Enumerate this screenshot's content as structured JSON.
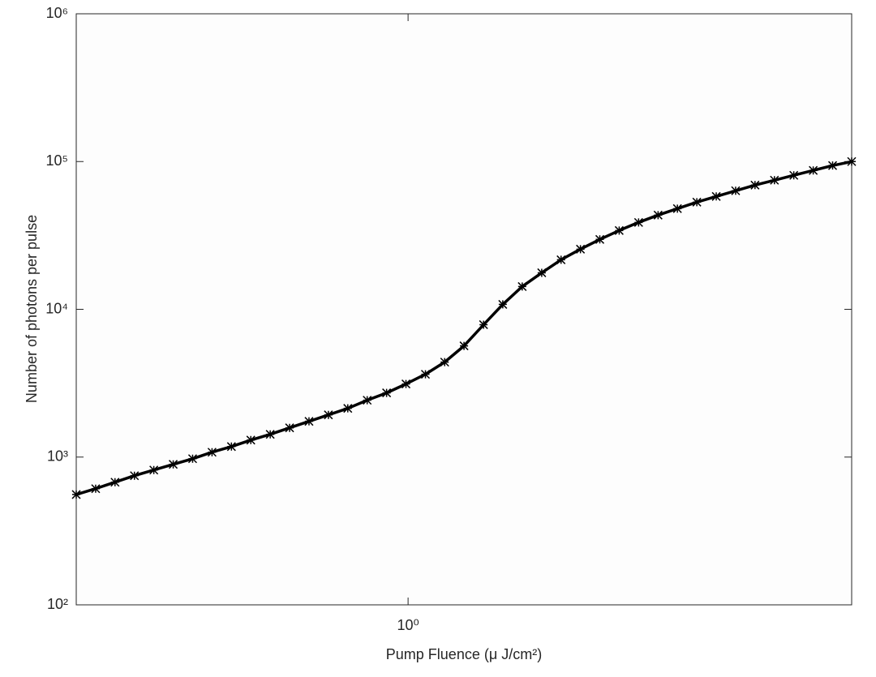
{
  "chart_data": {
    "type": "line",
    "x_label": "Pump Fluence (μ J/cm²)",
    "y_label": "Number of photons per pulse",
    "xscale": "log",
    "yscale": "log",
    "xlim": [
      0.3,
      5
    ],
    "ylim": [
      100,
      1000000
    ],
    "xticks": [
      {
        "value": 1,
        "label": "10⁰"
      }
    ],
    "yticks": [
      {
        "value": 100,
        "label": "10²"
      },
      {
        "value": 1000,
        "label": "10³"
      },
      {
        "value": 10000,
        "label": "10⁴"
      },
      {
        "value": 100000,
        "label": "10⁵"
      },
      {
        "value": 1000000,
        "label": "10⁶"
      }
    ],
    "color": "#000000",
    "marker": "star",
    "x": [
      0.3,
      0.3219,
      0.3453,
      0.3705,
      0.3975,
      0.4265,
      0.4576,
      0.491,
      0.5268,
      0.5652,
      0.6064,
      0.6506,
      0.698,
      0.7489,
      0.8035,
      0.8621,
      0.925,
      0.9924,
      1.065,
      1.142,
      1.225,
      1.315,
      1.41,
      1.513,
      1.624,
      1.742,
      1.869,
      2.005,
      2.151,
      2.308,
      2.477,
      2.657,
      2.851,
      3.059,
      3.282,
      3.521,
      3.778,
      4.053,
      4.349,
      4.666,
      5.0
    ],
    "values": [
      558,
      611,
      676,
      748,
      817,
      893,
      975,
      1079,
      1178,
      1303,
      1425,
      1577,
      1745,
      1930,
      2136,
      2425,
      2719,
      3124,
      3634,
      4393,
      5659,
      7870,
      10800,
      14260,
      17670,
      21630,
      25530,
      29720,
      34130,
      38720,
      43400,
      48010,
      53110,
      58050,
      63440,
      69280,
      74770,
      80690,
      87080,
      93980,
      100000
    ]
  }
}
